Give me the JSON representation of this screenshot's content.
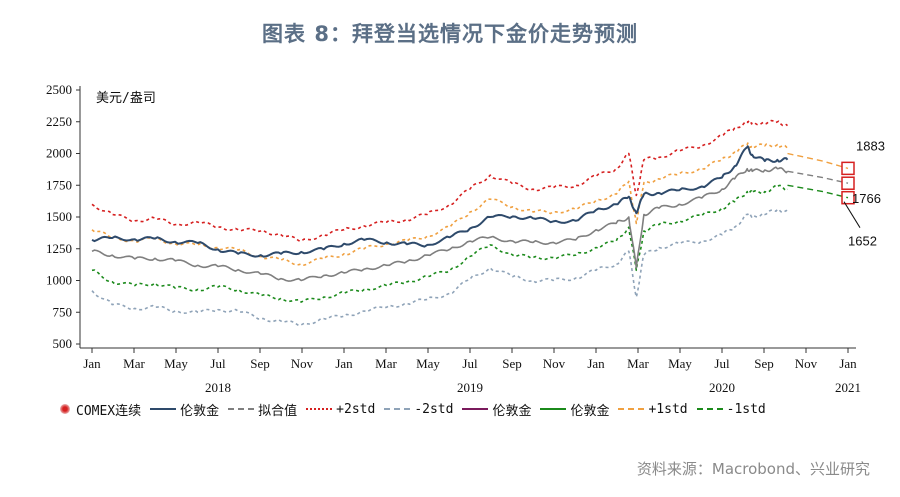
{
  "title": "图表 8：拜登当选情况下金价走势预测",
  "source": "资料来源：Macrobond、兴业研究",
  "colors": {
    "gold": "#2e4a6b",
    "fit": "#7f7f7f",
    "plus2": "#d62020",
    "minus2": "#8fa3b8",
    "plus1": "#f0a040",
    "minus1": "#1b8a1b",
    "marker": "#d62020",
    "axis": "#333333"
  },
  "legend": [
    {
      "label": "COMEX连续",
      "color": "#d62020",
      "style": "marker"
    },
    {
      "label": "伦敦金",
      "color": "#2e4a6b",
      "style": "solid"
    },
    {
      "label": "拟合值",
      "color": "#7f7f7f",
      "style": "dash"
    },
    {
      "label": "+2std",
      "color": "#d62020",
      "style": "dot"
    },
    {
      "label": "-2std",
      "color": "#8fa3b8",
      "style": "dash"
    },
    {
      "label": "伦敦金",
      "color": "#7a1a5c",
      "style": "solid"
    },
    {
      "label": "伦敦金",
      "color": "#1b8a1b",
      "style": "solid"
    },
    {
      "label": "+1std",
      "color": "#f0a040",
      "style": "dash"
    },
    {
      "label": "-1std",
      "color": "#1b8a1b",
      "style": "dash"
    }
  ],
  "chart_data": {
    "type": "line",
    "ylabel": "美元/盎司",
    "ylim": [
      500,
      2500
    ],
    "yticks": [
      500,
      750,
      1000,
      1250,
      1500,
      1750,
      2000,
      2250,
      2500
    ],
    "xlim": [
      2018.0,
      2021.0
    ],
    "month_ticks": [
      "Jan",
      "Mar",
      "May",
      "Jul",
      "Sep",
      "Nov",
      "Jan",
      "Mar",
      "May",
      "Jul",
      "Sep",
      "Nov",
      "Jan",
      "Mar",
      "May",
      "Jul",
      "Sep",
      "Nov",
      "Jan"
    ],
    "year_labels": [
      {
        "label": "2018",
        "x": 2018.5
      },
      {
        "label": "2019",
        "x": 2019.5
      },
      {
        "label": "2020",
        "x": 2020.5
      },
      {
        "label": "2021",
        "x": 2021.0
      }
    ],
    "grid": false,
    "legend_position": "bottom",
    "series": [
      {
        "key": "gold",
        "name": "伦敦金",
        "points": [
          [
            2018.0,
            1320
          ],
          [
            2018.08,
            1335
          ],
          [
            2018.17,
            1325
          ],
          [
            2018.25,
            1330
          ],
          [
            2018.33,
            1305
          ],
          [
            2018.42,
            1295
          ],
          [
            2018.5,
            1245
          ],
          [
            2018.58,
            1210
          ],
          [
            2018.67,
            1200
          ],
          [
            2018.75,
            1210
          ],
          [
            2018.83,
            1225
          ],
          [
            2018.92,
            1245
          ],
          [
            2019.0,
            1290
          ],
          [
            2019.08,
            1320
          ],
          [
            2019.17,
            1300
          ],
          [
            2019.25,
            1285
          ],
          [
            2019.33,
            1280
          ],
          [
            2019.42,
            1340
          ],
          [
            2019.5,
            1410
          ],
          [
            2019.58,
            1500
          ],
          [
            2019.67,
            1505
          ],
          [
            2019.75,
            1490
          ],
          [
            2019.83,
            1465
          ],
          [
            2019.92,
            1470
          ],
          [
            2020.0,
            1555
          ],
          [
            2020.08,
            1600
          ],
          [
            2020.13,
            1660
          ],
          [
            2020.16,
            1530
          ],
          [
            2020.19,
            1680
          ],
          [
            2020.25,
            1690
          ],
          [
            2020.33,
            1710
          ],
          [
            2020.42,
            1740
          ],
          [
            2020.5,
            1810
          ],
          [
            2020.55,
            1900
          ],
          [
            2020.6,
            2050
          ],
          [
            2020.62,
            1990
          ],
          [
            2020.67,
            1940
          ],
          [
            2020.72,
            1950
          ],
          [
            2020.76,
            1950
          ]
        ]
      },
      {
        "key": "fit",
        "name": "拟合值",
        "points": [
          [
            2018.0,
            1230
          ],
          [
            2018.08,
            1200
          ],
          [
            2018.17,
            1170
          ],
          [
            2018.25,
            1175
          ],
          [
            2018.33,
            1155
          ],
          [
            2018.42,
            1120
          ],
          [
            2018.5,
            1110
          ],
          [
            2018.58,
            1085
          ],
          [
            2018.67,
            1050
          ],
          [
            2018.75,
            1015
          ],
          [
            2018.83,
            1000
          ],
          [
            2018.92,
            1040
          ],
          [
            2019.0,
            1060
          ],
          [
            2019.08,
            1090
          ],
          [
            2019.17,
            1120
          ],
          [
            2019.25,
            1150
          ],
          [
            2019.33,
            1200
          ],
          [
            2019.42,
            1245
          ],
          [
            2019.5,
            1310
          ],
          [
            2019.58,
            1340
          ],
          [
            2019.67,
            1310
          ],
          [
            2019.75,
            1300
          ],
          [
            2019.83,
            1300
          ],
          [
            2019.92,
            1320
          ],
          [
            2020.0,
            1400
          ],
          [
            2020.08,
            1450
          ],
          [
            2020.13,
            1500
          ],
          [
            2020.16,
            1100
          ],
          [
            2020.19,
            1520
          ],
          [
            2020.25,
            1570
          ],
          [
            2020.33,
            1600
          ],
          [
            2020.42,
            1650
          ],
          [
            2020.5,
            1720
          ],
          [
            2020.55,
            1800
          ],
          [
            2020.6,
            1880
          ],
          [
            2020.62,
            1860
          ],
          [
            2020.67,
            1870
          ],
          [
            2020.72,
            1880
          ],
          [
            2020.76,
            1860
          ]
        ]
      },
      {
        "key": "fit_forecast",
        "name": "拟合值",
        "points": [
          [
            2020.76,
            1860
          ],
          [
            2020.9,
            1810
          ],
          [
            2021.0,
            1766
          ]
        ]
      },
      {
        "key": "plus2",
        "name": "+2std",
        "points": [
          [
            2018.0,
            1600
          ],
          [
            2018.08,
            1520
          ],
          [
            2018.17,
            1470
          ],
          [
            2018.25,
            1490
          ],
          [
            2018.33,
            1440
          ],
          [
            2018.42,
            1460
          ],
          [
            2018.5,
            1420
          ],
          [
            2018.58,
            1400
          ],
          [
            2018.67,
            1390
          ],
          [
            2018.75,
            1360
          ],
          [
            2018.83,
            1310
          ],
          [
            2018.92,
            1360
          ],
          [
            2019.0,
            1400
          ],
          [
            2019.08,
            1430
          ],
          [
            2019.17,
            1460
          ],
          [
            2019.25,
            1480
          ],
          [
            2019.33,
            1520
          ],
          [
            2019.42,
            1600
          ],
          [
            2019.5,
            1720
          ],
          [
            2019.58,
            1830
          ],
          [
            2019.67,
            1760
          ],
          [
            2019.75,
            1720
          ],
          [
            2019.83,
            1730
          ],
          [
            2019.92,
            1750
          ],
          [
            2020.0,
            1820
          ],
          [
            2020.08,
            1880
          ],
          [
            2020.13,
            2000
          ],
          [
            2020.16,
            1670
          ],
          [
            2020.19,
            1950
          ],
          [
            2020.25,
            1970
          ],
          [
            2020.33,
            2020
          ],
          [
            2020.42,
            2060
          ],
          [
            2020.5,
            2140
          ],
          [
            2020.55,
            2200
          ],
          [
            2020.6,
            2250
          ],
          [
            2020.62,
            2240
          ],
          [
            2020.67,
            2240
          ],
          [
            2020.72,
            2250
          ],
          [
            2020.76,
            2220
          ]
        ]
      },
      {
        "key": "minus2",
        "name": "-2std",
        "points": [
          [
            2018.0,
            920
          ],
          [
            2018.08,
            810
          ],
          [
            2018.17,
            780
          ],
          [
            2018.25,
            790
          ],
          [
            2018.33,
            760
          ],
          [
            2018.42,
            750
          ],
          [
            2018.5,
            770
          ],
          [
            2018.58,
            760
          ],
          [
            2018.67,
            700
          ],
          [
            2018.75,
            680
          ],
          [
            2018.83,
            650
          ],
          [
            2018.92,
            700
          ],
          [
            2019.0,
            720
          ],
          [
            2019.08,
            760
          ],
          [
            2019.17,
            790
          ],
          [
            2019.25,
            820
          ],
          [
            2019.33,
            850
          ],
          [
            2019.42,
            900
          ],
          [
            2019.5,
            1010
          ],
          [
            2019.58,
            1100
          ],
          [
            2019.67,
            1030
          ],
          [
            2019.75,
            1000
          ],
          [
            2019.83,
            1000
          ],
          [
            2019.92,
            1020
          ],
          [
            2020.0,
            1080
          ],
          [
            2020.08,
            1130
          ],
          [
            2020.13,
            1230
          ],
          [
            2020.16,
            870
          ],
          [
            2020.19,
            1200
          ],
          [
            2020.25,
            1260
          ],
          [
            2020.33,
            1290
          ],
          [
            2020.42,
            1310
          ],
          [
            2020.5,
            1360
          ],
          [
            2020.55,
            1420
          ],
          [
            2020.6,
            1520
          ],
          [
            2020.62,
            1510
          ],
          [
            2020.67,
            1520
          ],
          [
            2020.72,
            1560
          ],
          [
            2020.76,
            1540
          ]
        ]
      },
      {
        "key": "plus1",
        "name": "+1std",
        "points": [
          [
            2018.0,
            1400
          ],
          [
            2018.08,
            1340
          ],
          [
            2018.17,
            1310
          ],
          [
            2018.25,
            1330
          ],
          [
            2018.33,
            1290
          ],
          [
            2018.42,
            1280
          ],
          [
            2018.5,
            1260
          ],
          [
            2018.58,
            1240
          ],
          [
            2018.67,
            1190
          ],
          [
            2018.75,
            1160
          ],
          [
            2018.83,
            1130
          ],
          [
            2018.92,
            1170
          ],
          [
            2019.0,
            1210
          ],
          [
            2019.08,
            1250
          ],
          [
            2019.17,
            1290
          ],
          [
            2019.25,
            1310
          ],
          [
            2019.33,
            1350
          ],
          [
            2019.42,
            1420
          ],
          [
            2019.5,
            1540
          ],
          [
            2019.58,
            1640
          ],
          [
            2019.67,
            1580
          ],
          [
            2019.75,
            1540
          ],
          [
            2019.83,
            1540
          ],
          [
            2019.92,
            1560
          ],
          [
            2020.0,
            1630
          ],
          [
            2020.08,
            1680
          ],
          [
            2020.13,
            1780
          ],
          [
            2020.16,
            1450
          ],
          [
            2020.19,
            1770
          ],
          [
            2020.25,
            1800
          ],
          [
            2020.33,
            1840
          ],
          [
            2020.42,
            1880
          ],
          [
            2020.5,
            1950
          ],
          [
            2020.55,
            2010
          ],
          [
            2020.6,
            2070
          ],
          [
            2020.62,
            2060
          ],
          [
            2020.67,
            2060
          ],
          [
            2020.72,
            2070
          ],
          [
            2020.76,
            2040
          ]
        ]
      },
      {
        "key": "plus1_forecast",
        "name": "+1std",
        "points": [
          [
            2020.76,
            2000
          ],
          [
            2020.9,
            1940
          ],
          [
            2021.0,
            1883
          ]
        ]
      },
      {
        "key": "minus1",
        "name": "-1std",
        "points": [
          [
            2018.0,
            1080
          ],
          [
            2018.08,
            990
          ],
          [
            2018.17,
            960
          ],
          [
            2018.25,
            980
          ],
          [
            2018.33,
            940
          ],
          [
            2018.42,
            930
          ],
          [
            2018.5,
            950
          ],
          [
            2018.58,
            930
          ],
          [
            2018.67,
            880
          ],
          [
            2018.75,
            860
          ],
          [
            2018.83,
            830
          ],
          [
            2018.92,
            870
          ],
          [
            2019.0,
            900
          ],
          [
            2019.08,
            930
          ],
          [
            2019.17,
            960
          ],
          [
            2019.25,
            990
          ],
          [
            2019.33,
            1030
          ],
          [
            2019.42,
            1080
          ],
          [
            2019.5,
            1190
          ],
          [
            2019.58,
            1280
          ],
          [
            2019.67,
            1200
          ],
          [
            2019.75,
            1180
          ],
          [
            2019.83,
            1180
          ],
          [
            2019.92,
            1200
          ],
          [
            2020.0,
            1260
          ],
          [
            2020.08,
            1310
          ],
          [
            2020.13,
            1420
          ],
          [
            2020.16,
            1080
          ],
          [
            2020.19,
            1390
          ],
          [
            2020.25,
            1440
          ],
          [
            2020.33,
            1470
          ],
          [
            2020.42,
            1510
          ],
          [
            2020.5,
            1570
          ],
          [
            2020.55,
            1620
          ],
          [
            2020.6,
            1700
          ],
          [
            2020.62,
            1690
          ],
          [
            2020.67,
            1700
          ],
          [
            2020.72,
            1740
          ],
          [
            2020.76,
            1720
          ]
        ]
      },
      {
        "key": "minus1_forecast",
        "name": "-1std",
        "points": [
          [
            2020.76,
            1750
          ],
          [
            2020.9,
            1700
          ],
          [
            2021.0,
            1652
          ]
        ]
      }
    ],
    "forecast_markers": [
      {
        "x": 2021.0,
        "y": 1883
      },
      {
        "x": 2021.0,
        "y": 1766
      },
      {
        "x": 2021.0,
        "y": 1652
      }
    ],
    "annotations": [
      {
        "text": "1883",
        "x": 2021.0,
        "y": 1883
      },
      {
        "text": "1766",
        "x": 2021.0,
        "y": 1766
      },
      {
        "text": "1652",
        "x": 2021.0,
        "y": 1652
      }
    ]
  }
}
